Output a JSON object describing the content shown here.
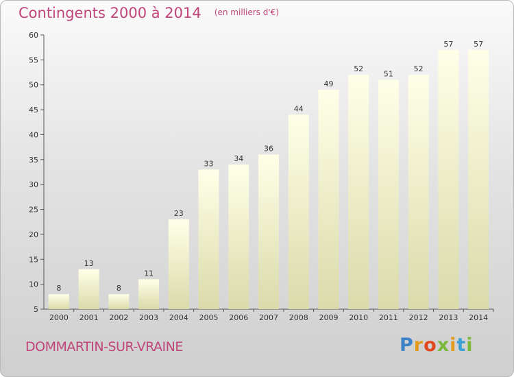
{
  "header": {
    "title": "Contingents 2000 à 2014",
    "subtitle": "(en milliers d'€)"
  },
  "footer": {
    "commune": "DOMMARTIN-SUR-VRAINE",
    "logo": "Proxiti"
  },
  "colors": {
    "title": "#c0457a",
    "bar_light": "#ffffe6",
    "bar_dark": "#d9d9a8"
  },
  "chart_data": {
    "type": "bar",
    "categories": [
      "2000",
      "2001",
      "2002",
      "2003",
      "2004",
      "2005",
      "2006",
      "2007",
      "2008",
      "2009",
      "2010",
      "2011",
      "2012",
      "2013",
      "2014"
    ],
    "values": [
      8,
      13,
      8,
      11,
      23,
      33,
      34,
      36,
      44,
      49,
      52,
      51,
      52,
      57,
      57
    ],
    "title": "Contingents 2000 à 2014",
    "subtitle": "(en milliers d'€)",
    "ylim": [
      5,
      60
    ],
    "yticks": [
      5,
      10,
      15,
      20,
      25,
      30,
      35,
      40,
      45,
      50,
      55,
      60
    ],
    "grid": false,
    "data_labels": true
  }
}
